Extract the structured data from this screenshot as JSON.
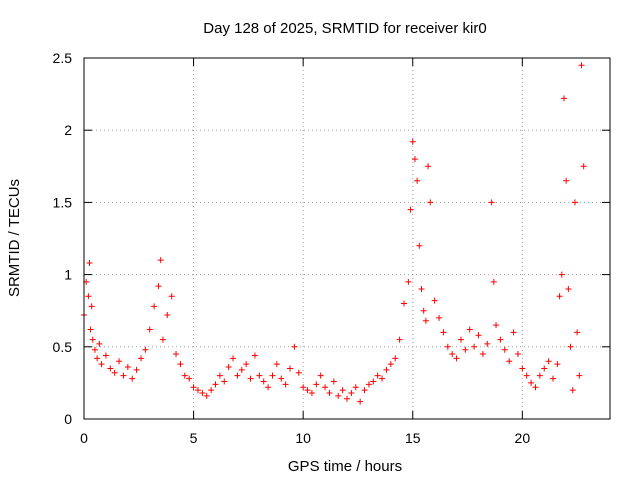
{
  "chart_data": {
    "type": "scatter",
    "title": "Day 128 of 2025, SRMTID for receiver kir0",
    "xlabel": "GPS time / hours",
    "ylabel": "SRMTID / TECUs",
    "xlim": [
      0,
      24
    ],
    "ylim": [
      0,
      2.5
    ],
    "x_ticks": [
      0,
      5,
      10,
      15,
      20
    ],
    "x_tick_labels": [
      "0",
      "5",
      "10",
      "15",
      "20"
    ],
    "y_ticks": [
      0,
      0.5,
      1,
      1.5,
      2,
      2.5
    ],
    "y_tick_labels": [
      "0",
      "0.5",
      "1",
      "1.5",
      "2",
      "2.5"
    ],
    "grid": true,
    "marker": "+",
    "color": "#ff0000",
    "series": [
      {
        "name": "SRMTID",
        "x": [
          0.0,
          0.1,
          0.2,
          0.25,
          0.3,
          0.35,
          0.4,
          0.5,
          0.6,
          0.7,
          0.8,
          1.0,
          1.2,
          1.4,
          1.6,
          1.8,
          2.0,
          2.2,
          2.4,
          2.6,
          2.8,
          3.0,
          3.2,
          3.4,
          3.5,
          3.6,
          3.8,
          4.0,
          4.2,
          4.4,
          4.6,
          4.8,
          5.0,
          5.2,
          5.4,
          5.6,
          5.8,
          6.0,
          6.2,
          6.4,
          6.6,
          6.8,
          7.0,
          7.2,
          7.4,
          7.6,
          7.8,
          8.0,
          8.2,
          8.4,
          8.6,
          8.8,
          9.0,
          9.2,
          9.4,
          9.6,
          9.8,
          10.0,
          10.2,
          10.4,
          10.6,
          10.8,
          11.0,
          11.2,
          11.4,
          11.6,
          11.8,
          12.0,
          12.2,
          12.4,
          12.6,
          12.8,
          13.0,
          13.2,
          13.4,
          13.6,
          13.8,
          14.0,
          14.2,
          14.4,
          14.6,
          14.8,
          14.9,
          15.0,
          15.1,
          15.2,
          15.3,
          15.4,
          15.5,
          15.6,
          15.7,
          15.8,
          16.0,
          16.2,
          16.4,
          16.6,
          16.8,
          17.0,
          17.2,
          17.4,
          17.6,
          17.8,
          18.0,
          18.2,
          18.4,
          18.6,
          18.7,
          18.8,
          19.0,
          19.2,
          19.4,
          19.6,
          19.8,
          20.0,
          20.2,
          20.4,
          20.6,
          20.8,
          21.0,
          21.2,
          21.4,
          21.6,
          21.7,
          21.8,
          21.9,
          22.0,
          22.1,
          22.2,
          22.3,
          22.4,
          22.5,
          22.6,
          22.7,
          22.8
        ],
        "y": [
          0.72,
          0.95,
          0.85,
          1.08,
          0.62,
          0.78,
          0.55,
          0.48,
          0.42,
          0.52,
          0.38,
          0.44,
          0.35,
          0.32,
          0.4,
          0.3,
          0.36,
          0.28,
          0.34,
          0.42,
          0.48,
          0.62,
          0.78,
          0.92,
          1.1,
          0.55,
          0.72,
          0.85,
          0.45,
          0.38,
          0.3,
          0.28,
          0.22,
          0.2,
          0.18,
          0.16,
          0.2,
          0.24,
          0.3,
          0.26,
          0.36,
          0.42,
          0.3,
          0.34,
          0.38,
          0.28,
          0.44,
          0.3,
          0.26,
          0.22,
          0.3,
          0.38,
          0.28,
          0.24,
          0.35,
          0.5,
          0.32,
          0.22,
          0.2,
          0.18,
          0.24,
          0.3,
          0.22,
          0.18,
          0.26,
          0.16,
          0.2,
          0.14,
          0.18,
          0.22,
          0.12,
          0.2,
          0.24,
          0.26,
          0.3,
          0.28,
          0.34,
          0.38,
          0.42,
          0.55,
          0.8,
          0.95,
          1.45,
          1.92,
          1.8,
          1.65,
          1.2,
          0.9,
          0.75,
          0.68,
          1.75,
          1.5,
          0.82,
          0.7,
          0.6,
          0.5,
          0.45,
          0.42,
          0.55,
          0.48,
          0.62,
          0.5,
          0.58,
          0.45,
          0.52,
          1.5,
          0.95,
          0.65,
          0.55,
          0.48,
          0.4,
          0.6,
          0.45,
          0.35,
          0.3,
          0.25,
          0.22,
          0.3,
          0.35,
          0.4,
          0.28,
          0.38,
          0.85,
          1.0,
          2.22,
          1.65,
          0.9,
          0.5,
          0.2,
          1.5,
          0.6,
          0.3,
          2.45,
          1.75
        ]
      }
    ]
  }
}
